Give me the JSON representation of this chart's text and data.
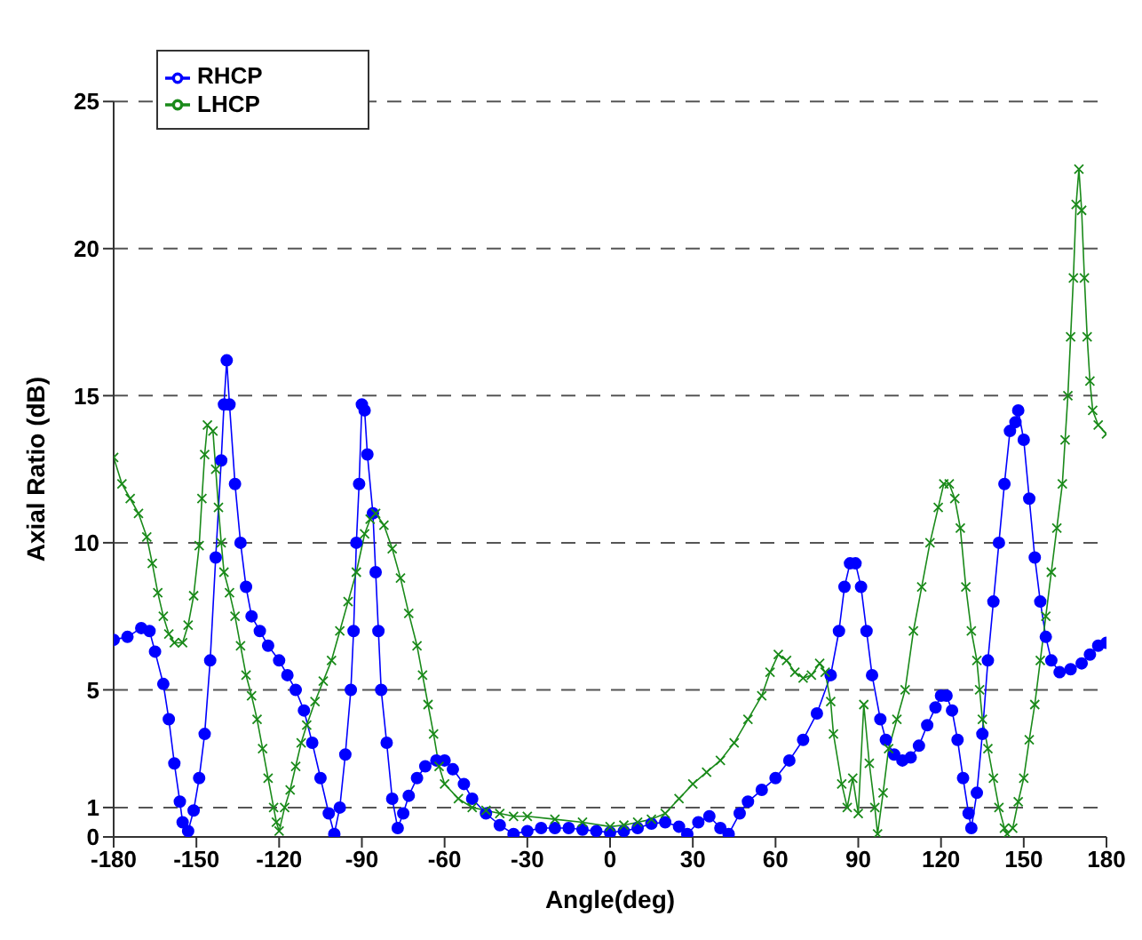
{
  "chart_data": {
    "type": "line",
    "xlabel": "Angle(deg)",
    "ylabel": "Axial Ratio (dB)",
    "xlim": [
      -180,
      180
    ],
    "xticks": [
      -180,
      -150,
      -120,
      -90,
      -60,
      -30,
      0,
      30,
      60,
      90,
      120,
      150,
      180
    ],
    "ylim": [
      0,
      25
    ],
    "yticks": [
      0,
      1,
      5,
      10,
      15,
      20,
      25
    ],
    "grid": "y",
    "legend": "top left",
    "line_style": "solid",
    "series": [
      {
        "name": "RHCP",
        "color": "#0000ff",
        "marker": "circle",
        "x": [
          -180,
          -175,
          -170,
          -167,
          -165,
          -162,
          -160,
          -158,
          -156,
          -155,
          -153,
          -151,
          -149,
          -147,
          -145,
          -143,
          -141,
          -140,
          -139,
          -138,
          -136,
          -134,
          -132,
          -130,
          -127,
          -124,
          -120,
          -117,
          -114,
          -111,
          -108,
          -105,
          -102,
          -100,
          -98,
          -96,
          -94,
          -93,
          -92,
          -91,
          -90,
          -89,
          -88,
          -86,
          -85,
          -84,
          -83,
          -81,
          -79,
          -77,
          -75,
          -73,
          -70,
          -67,
          -63,
          -60,
          -57,
          -53,
          -50,
          -45,
          -40,
          -35,
          -30,
          -25,
          -20,
          -15,
          -10,
          -5,
          0,
          5,
          10,
          15,
          20,
          25,
          28,
          32,
          36,
          40,
          43,
          47,
          50,
          55,
          60,
          65,
          70,
          75,
          80,
          83,
          85,
          87,
          89,
          91,
          93,
          95,
          98,
          100,
          103,
          106,
          109,
          112,
          115,
          118,
          120,
          122,
          124,
          126,
          128,
          130,
          131,
          133,
          135,
          137,
          139,
          141,
          143,
          145,
          147,
          148,
          150,
          152,
          154,
          156,
          158,
          160,
          163,
          167,
          171,
          174,
          177,
          180
        ],
        "values": [
          6.7,
          6.8,
          7.1,
          7,
          6.3,
          5.2,
          4,
          2.5,
          1.2,
          0.5,
          0.2,
          0.9,
          2,
          3.5,
          6,
          9.5,
          12.8,
          14.7,
          16.2,
          14.7,
          12,
          10,
          8.5,
          7.5,
          7,
          6.5,
          6,
          5.5,
          5,
          4.3,
          3.2,
          2,
          0.8,
          0.1,
          1,
          2.8,
          5,
          7,
          10,
          12,
          14.7,
          14.5,
          13,
          11,
          9,
          7,
          5,
          3.2,
          1.3,
          0.3,
          0.8,
          1.4,
          2,
          2.4,
          2.6,
          2.6,
          2.3,
          1.8,
          1.3,
          0.8,
          0.4,
          0.1,
          0.2,
          0.3,
          0.3,
          0.3,
          0.25,
          0.2,
          0.15,
          0.2,
          0.3,
          0.45,
          0.5,
          0.35,
          0.1,
          0.5,
          0.7,
          0.3,
          0.1,
          0.8,
          1.2,
          1.6,
          2,
          2.6,
          3.3,
          4.2,
          5.5,
          7,
          8.5,
          9.3,
          9.3,
          8.5,
          7,
          5.5,
          4,
          3.3,
          2.8,
          2.6,
          2.7,
          3.1,
          3.8,
          4.4,
          4.8,
          4.8,
          4.3,
          3.3,
          2,
          0.8,
          0.3,
          1.5,
          3.5,
          6,
          8,
          10,
          12,
          13.8,
          14.1,
          14.5,
          13.5,
          11.5,
          9.5,
          8,
          6.8,
          6,
          5.6,
          5.7,
          5.9,
          6.2,
          6.5,
          6.6
        ]
      },
      {
        "name": "LHCP",
        "color": "#1a8a1a",
        "marker": "cross",
        "x": [
          -180,
          -177,
          -174,
          -171,
          -168,
          -166,
          -164,
          -162,
          -160,
          -158,
          -155,
          -153,
          -151,
          -149,
          -148,
          -147,
          -146,
          -144,
          -143,
          -142,
          -141,
          -140,
          -138,
          -136,
          -134,
          -132,
          -130,
          -128,
          -126,
          -124,
          -122,
          -121,
          -120,
          -118,
          -116,
          -114,
          -112,
          -110,
          -107,
          -104,
          -101,
          -98,
          -95,
          -92,
          -89,
          -87,
          -85,
          -82,
          -79,
          -76,
          -73,
          -70,
          -68,
          -66,
          -64,
          -62,
          -60,
          -55,
          -50,
          -45,
          -40,
          -35,
          -30,
          -20,
          -10,
          0,
          5,
          10,
          15,
          20,
          25,
          30,
          35,
          40,
          45,
          50,
          55,
          58,
          61,
          64,
          67,
          70,
          73,
          76,
          78,
          80,
          81,
          84,
          86,
          88,
          90,
          92,
          94,
          96,
          97,
          99,
          101,
          104,
          107,
          110,
          113,
          116,
          119,
          121,
          123,
          125,
          127,
          129,
          131,
          133,
          134,
          135,
          137,
          139,
          141,
          143,
          144,
          146,
          148,
          150,
          152,
          154,
          156,
          158,
          160,
          162,
          164,
          165,
          166,
          167,
          168,
          169,
          170,
          171,
          172,
          173,
          174,
          175,
          177,
          180
        ],
        "values": [
          12.9,
          12,
          11.5,
          11,
          10.2,
          9.3,
          8.3,
          7.5,
          6.9,
          6.6,
          6.6,
          7.2,
          8.2,
          9.9,
          11.5,
          13,
          14,
          13.8,
          12.5,
          11.2,
          10,
          9,
          8.3,
          7.5,
          6.5,
          5.5,
          4.8,
          4,
          3,
          2,
          1,
          0.5,
          0.2,
          1,
          1.6,
          2.4,
          3.2,
          3.8,
          4.6,
          5.3,
          6,
          7,
          8,
          9,
          10.3,
          10.8,
          11,
          10.6,
          9.8,
          8.8,
          7.6,
          6.5,
          5.5,
          4.5,
          3.5,
          2.4,
          1.8,
          1.3,
          1,
          0.9,
          0.8,
          0.7,
          0.7,
          0.6,
          0.5,
          0.35,
          0.4,
          0.5,
          0.6,
          0.8,
          1.3,
          1.8,
          2.2,
          2.6,
          3.2,
          4,
          4.8,
          5.6,
          6.2,
          6,
          5.6,
          5.4,
          5.5,
          5.9,
          5.6,
          4.6,
          3.5,
          1.8,
          1,
          2,
          0.8,
          4.5,
          2.5,
          1,
          0.1,
          1.5,
          3,
          4,
          5,
          7,
          8.5,
          10,
          11.2,
          12,
          12,
          11.5,
          10.5,
          8.5,
          7,
          6,
          5,
          4,
          3,
          2,
          1,
          0.3,
          0.1,
          0.3,
          1.2,
          2,
          3.3,
          4.5,
          6,
          7.5,
          9,
          10.5,
          12,
          13.5,
          15,
          17,
          19,
          21.5,
          22.7,
          21.3,
          19,
          17,
          15.5,
          14.5,
          14,
          13.7
        ]
      }
    ]
  }
}
